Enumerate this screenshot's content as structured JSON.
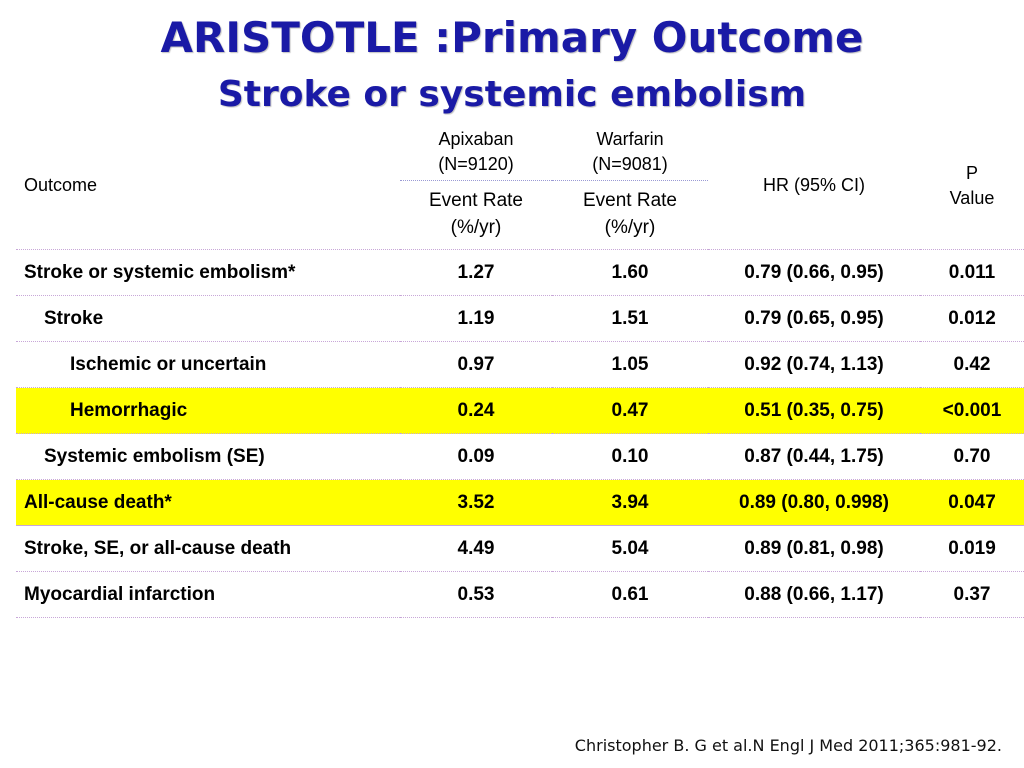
{
  "title": "ARISTOTLE :Primary Outcome",
  "subtitle": "Stroke or systemic embolism",
  "header": {
    "outcome": "Outcome",
    "apixaban": "Apixaban",
    "apixaban_n": "(N=9120)",
    "warfarin": "Warfarin",
    "warfarin_n": "(N=9081)",
    "event_rate": "Event Rate",
    "event_unit": "(%/yr)",
    "hr": "HR (95% CI)",
    "p": "P",
    "p2": "Value"
  },
  "rows": [
    {
      "label": "Stroke or systemic embolism*",
      "apixaban": "1.27",
      "warfarin": "1.60",
      "hr": "0.79 (0.66, 0.95)",
      "p": "0.011"
    },
    {
      "label": "Stroke",
      "apixaban": "1.19",
      "warfarin": "1.51",
      "hr": "0.79 (0.65, 0.95)",
      "p": "0.012"
    },
    {
      "label": "Ischemic or uncertain",
      "apixaban": "0.97",
      "warfarin": "1.05",
      "hr": "0.92 (0.74, 1.13)",
      "p": "0.42"
    },
    {
      "label": "Hemorrhagic",
      "apixaban": "0.24",
      "warfarin": "0.47",
      "hr": "0.51 (0.35, 0.75)",
      "p": "<0.001"
    },
    {
      "label": "Systemic embolism (SE)",
      "apixaban": "0.09",
      "warfarin": "0.10",
      "hr": "0.87 (0.44, 1.75)",
      "p": "0.70"
    },
    {
      "label": "All-cause death*",
      "apixaban": "3.52",
      "warfarin": "3.94",
      "hr": "0.89 (0.80, 0.998)",
      "p": "0.047"
    },
    {
      "label": "Stroke, SE, or all-cause death",
      "apixaban": "4.49",
      "warfarin": "5.04",
      "hr": "0.89 (0.81, 0.98)",
      "p": "0.019"
    },
    {
      "label": "Myocardial infarction",
      "apixaban": "0.53",
      "warfarin": "0.61",
      "hr": "0.88 (0.66, 1.17)",
      "p": "0.37"
    }
  ],
  "colors": {
    "title": "#1a1aa6",
    "highlight": "#ffff00"
  },
  "citation": "Christopher B. G et al.N Engl J Med 2011;365:981-92."
}
